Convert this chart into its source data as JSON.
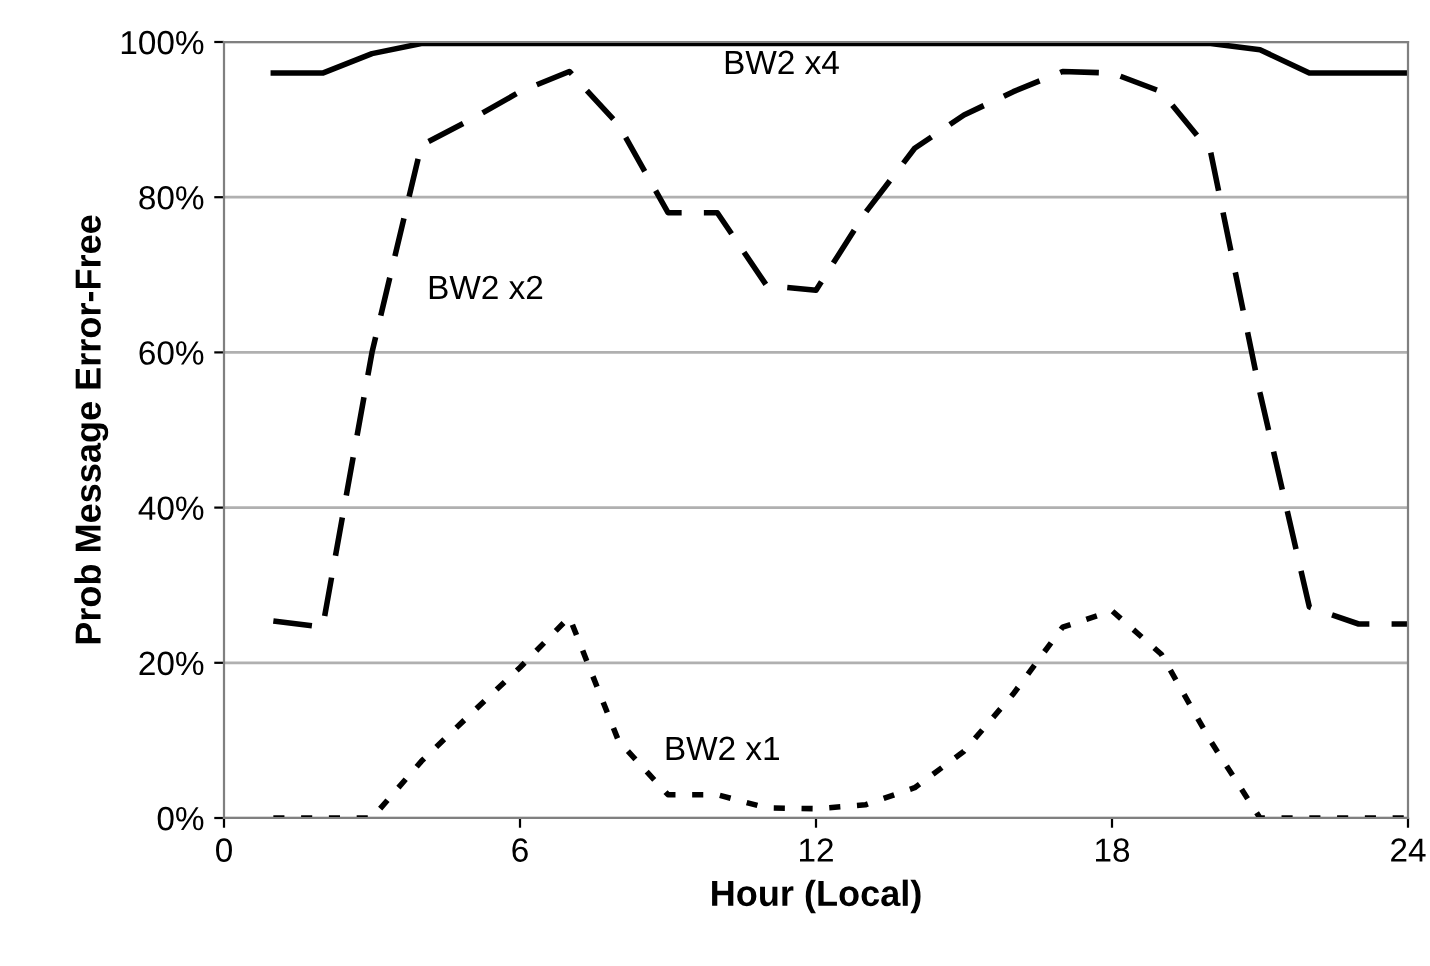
{
  "chart_data": {
    "type": "line",
    "xlabel": "Hour (Local)",
    "ylabel": "Prob Message Error-Free",
    "xlim": [
      0,
      24
    ],
    "ylim": [
      0,
      100
    ],
    "xticks": [
      0,
      6,
      12,
      18,
      24
    ],
    "yticks": [
      {
        "value": 0,
        "label": "0%"
      },
      {
        "value": 20,
        "label": "20%"
      },
      {
        "value": 40,
        "label": "40%"
      },
      {
        "value": 60,
        "label": "60%"
      },
      {
        "value": 80,
        "label": "80%"
      },
      {
        "value": 100,
        "label": "100%"
      }
    ],
    "grid": "y",
    "legend": false,
    "marker": "none",
    "x": [
      1,
      2,
      3,
      4,
      5,
      6,
      7,
      8,
      9,
      10,
      11,
      12,
      13,
      14,
      15,
      16,
      17,
      18,
      19,
      20,
      21,
      22,
      23,
      24
    ],
    "series": [
      {
        "name": "BW2 x4",
        "color": "#000000",
        "line_style": "solid",
        "values": [
          96,
          96,
          98.5,
          99.8,
          99.8,
          99.8,
          99.8,
          99.8,
          99.8,
          99.8,
          99.8,
          99.8,
          99.8,
          99.8,
          99.8,
          99.8,
          99.8,
          99.8,
          99.8,
          99.8,
          99,
          96,
          96,
          96
        ]
      },
      {
        "name": "BW2 x2",
        "color": "#000000",
        "line_style": "dashed",
        "values": [
          25.4,
          24.6,
          60,
          86.7,
          90,
          93.6,
          96.2,
          89.3,
          78,
          78,
          68.6,
          68,
          78,
          86.3,
          90.6,
          93.6,
          96.2,
          96,
          93.6,
          85.8,
          54.8,
          27.2,
          25,
          25
        ]
      },
      {
        "name": "BW2 x1",
        "color": "#000000",
        "line_style": "dotted",
        "values": [
          0,
          0,
          0,
          7.3,
          13.4,
          19.4,
          25.9,
          9.9,
          3,
          3,
          1.3,
          1.2,
          1.7,
          3.9,
          8.6,
          16,
          24.6,
          26.7,
          21.1,
          9.9,
          0,
          0,
          0,
          0
        ]
      }
    ]
  }
}
